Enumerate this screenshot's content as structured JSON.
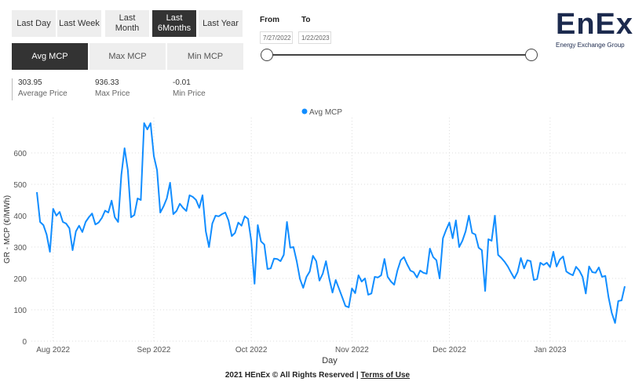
{
  "period_buttons": [
    {
      "label": "Last Day",
      "active": false
    },
    {
      "label": "Last Week",
      "active": false
    },
    {
      "label": "Last\nMonth",
      "active": false
    },
    {
      "label": "Last\n6Months",
      "active": true
    },
    {
      "label": "Last Year",
      "active": false
    }
  ],
  "metric_buttons": [
    {
      "label": "Avg MCP",
      "active": true
    },
    {
      "label": "Max MCP",
      "active": false
    },
    {
      "label": "Min MCP",
      "active": false
    }
  ],
  "stats": [
    {
      "value": "303.95",
      "label": "Average Price"
    },
    {
      "value": "936.33",
      "label": "Max Price"
    },
    {
      "value": "-0.01",
      "label": "Min Price"
    }
  ],
  "date_range": {
    "from_label": "From",
    "to_label": "To",
    "from_value": "7/27/2022",
    "to_value": "1/22/2023"
  },
  "logo": {
    "name": "EnEx",
    "subtitle": "Energy Exchange Group"
  },
  "footer": {
    "text": "2021 HEnEx © All Rights Reserved | ",
    "link": "Terms of Use"
  },
  "chart_data": {
    "type": "line",
    "legend": "Avg MCP",
    "legend_position": "top-center",
    "xlabel": "Day",
    "ylabel": "GR - MCP (€/MWh)",
    "ylim": [
      0,
      700
    ],
    "yticks": [
      0,
      100,
      200,
      300,
      400,
      500,
      600
    ],
    "grid": true,
    "color": "#118dff",
    "xticks": [
      {
        "label": "Aug 2022",
        "date": "2022-08-01"
      },
      {
        "label": "Sep 2022",
        "date": "2022-09-01"
      },
      {
        "label": "Oct 2022",
        "date": "2022-10-01"
      },
      {
        "label": "Nov 2022",
        "date": "2022-11-01"
      },
      {
        "label": "Dec 2022",
        "date": "2022-12-01"
      },
      {
        "label": "Jan 2023",
        "date": "2023-01-01"
      }
    ],
    "series": [
      {
        "name": "Avg MCP",
        "points": [
          [
            "2022-07-27",
            475
          ],
          [
            "2022-07-28",
            380
          ],
          [
            "2022-07-29",
            370
          ],
          [
            "2022-07-30",
            340
          ],
          [
            "2022-07-31",
            285
          ],
          [
            "2022-08-01",
            422
          ],
          [
            "2022-08-02",
            400
          ],
          [
            "2022-08-03",
            412
          ],
          [
            "2022-08-04",
            380
          ],
          [
            "2022-08-05",
            375
          ],
          [
            "2022-08-06",
            360
          ],
          [
            "2022-08-07",
            290
          ],
          [
            "2022-08-08",
            350
          ],
          [
            "2022-08-09",
            368
          ],
          [
            "2022-08-10",
            348
          ],
          [
            "2022-08-11",
            380
          ],
          [
            "2022-08-12",
            395
          ],
          [
            "2022-08-13",
            407
          ],
          [
            "2022-08-14",
            372
          ],
          [
            "2022-08-15",
            378
          ],
          [
            "2022-08-16",
            393
          ],
          [
            "2022-08-17",
            416
          ],
          [
            "2022-08-18",
            410
          ],
          [
            "2022-08-19",
            448
          ],
          [
            "2022-08-20",
            395
          ],
          [
            "2022-08-21",
            380
          ],
          [
            "2022-08-22",
            530
          ],
          [
            "2022-08-23",
            615
          ],
          [
            "2022-08-24",
            545
          ],
          [
            "2022-08-25",
            395
          ],
          [
            "2022-08-26",
            402
          ],
          [
            "2022-08-27",
            455
          ],
          [
            "2022-08-28",
            450
          ],
          [
            "2022-08-29",
            695
          ],
          [
            "2022-08-30",
            675
          ],
          [
            "2022-08-31",
            695
          ],
          [
            "2022-09-01",
            590
          ],
          [
            "2022-09-02",
            545
          ],
          [
            "2022-09-03",
            410
          ],
          [
            "2022-09-04",
            430
          ],
          [
            "2022-09-05",
            455
          ],
          [
            "2022-09-06",
            505
          ],
          [
            "2022-09-07",
            405
          ],
          [
            "2022-09-08",
            415
          ],
          [
            "2022-09-09",
            438
          ],
          [
            "2022-09-10",
            425
          ],
          [
            "2022-09-11",
            415
          ],
          [
            "2022-09-12",
            465
          ],
          [
            "2022-09-13",
            460
          ],
          [
            "2022-09-14",
            450
          ],
          [
            "2022-09-15",
            425
          ],
          [
            "2022-09-16",
            465
          ],
          [
            "2022-09-17",
            350
          ],
          [
            "2022-09-18",
            300
          ],
          [
            "2022-09-19",
            375
          ],
          [
            "2022-09-20",
            400
          ],
          [
            "2022-09-21",
            398
          ],
          [
            "2022-09-22",
            405
          ],
          [
            "2022-09-23",
            410
          ],
          [
            "2022-09-24",
            385
          ],
          [
            "2022-09-25",
            335
          ],
          [
            "2022-09-26",
            345
          ],
          [
            "2022-09-27",
            378
          ],
          [
            "2022-09-28",
            368
          ],
          [
            "2022-09-29",
            398
          ],
          [
            "2022-09-30",
            390
          ],
          [
            "2022-10-01",
            320
          ],
          [
            "2022-10-02",
            183
          ],
          [
            "2022-10-03",
            370
          ],
          [
            "2022-10-04",
            318
          ],
          [
            "2022-10-05",
            308
          ],
          [
            "2022-10-06",
            230
          ],
          [
            "2022-10-07",
            232
          ],
          [
            "2022-10-08",
            263
          ],
          [
            "2022-10-09",
            262
          ],
          [
            "2022-10-10",
            255
          ],
          [
            "2022-10-11",
            275
          ],
          [
            "2022-10-12",
            380
          ],
          [
            "2022-10-13",
            298
          ],
          [
            "2022-10-14",
            300
          ],
          [
            "2022-10-15",
            255
          ],
          [
            "2022-10-16",
            198
          ],
          [
            "2022-10-17",
            170
          ],
          [
            "2022-10-18",
            205
          ],
          [
            "2022-10-19",
            222
          ],
          [
            "2022-10-20",
            272
          ],
          [
            "2022-10-21",
            255
          ],
          [
            "2022-10-22",
            193
          ],
          [
            "2022-10-23",
            215
          ],
          [
            "2022-10-24",
            255
          ],
          [
            "2022-10-25",
            200
          ],
          [
            "2022-10-26",
            155
          ],
          [
            "2022-10-27",
            195
          ],
          [
            "2022-10-28",
            168
          ],
          [
            "2022-10-29",
            140
          ],
          [
            "2022-10-30",
            112
          ],
          [
            "2022-10-31",
            108
          ],
          [
            "2022-11-01",
            168
          ],
          [
            "2022-11-02",
            153
          ],
          [
            "2022-11-03",
            210
          ],
          [
            "2022-11-04",
            190
          ],
          [
            "2022-11-05",
            200
          ],
          [
            "2022-11-06",
            148
          ],
          [
            "2022-11-07",
            152
          ],
          [
            "2022-11-08",
            205
          ],
          [
            "2022-11-09",
            203
          ],
          [
            "2022-11-10",
            210
          ],
          [
            "2022-11-11",
            262
          ],
          [
            "2022-11-12",
            205
          ],
          [
            "2022-11-13",
            190
          ],
          [
            "2022-11-14",
            180
          ],
          [
            "2022-11-15",
            225
          ],
          [
            "2022-11-16",
            258
          ],
          [
            "2022-11-17",
            268
          ],
          [
            "2022-11-18",
            245
          ],
          [
            "2022-11-19",
            225
          ],
          [
            "2022-11-20",
            220
          ],
          [
            "2022-11-21",
            203
          ],
          [
            "2022-11-22",
            225
          ],
          [
            "2022-11-23",
            218
          ],
          [
            "2022-11-24",
            215
          ],
          [
            "2022-11-25",
            295
          ],
          [
            "2022-11-26",
            268
          ],
          [
            "2022-11-27",
            258
          ],
          [
            "2022-11-28",
            200
          ],
          [
            "2022-11-29",
            328
          ],
          [
            "2022-11-30",
            355
          ],
          [
            "2022-12-01",
            378
          ],
          [
            "2022-12-02",
            328
          ],
          [
            "2022-12-03",
            385
          ],
          [
            "2022-12-04",
            300
          ],
          [
            "2022-12-05",
            320
          ],
          [
            "2022-12-06",
            350
          ],
          [
            "2022-12-07",
            400
          ],
          [
            "2022-12-08",
            345
          ],
          [
            "2022-12-09",
            340
          ],
          [
            "2022-12-10",
            298
          ],
          [
            "2022-12-11",
            290
          ],
          [
            "2022-12-12",
            160
          ],
          [
            "2022-12-13",
            325
          ],
          [
            "2022-12-14",
            320
          ],
          [
            "2022-12-15",
            400
          ],
          [
            "2022-12-16",
            275
          ],
          [
            "2022-12-17",
            265
          ],
          [
            "2022-12-18",
            253
          ],
          [
            "2022-12-19",
            238
          ],
          [
            "2022-12-20",
            218
          ],
          [
            "2022-12-21",
            200
          ],
          [
            "2022-12-22",
            220
          ],
          [
            "2022-12-23",
            265
          ],
          [
            "2022-12-24",
            232
          ],
          [
            "2022-12-25",
            258
          ],
          [
            "2022-12-26",
            255
          ],
          [
            "2022-12-27",
            195
          ],
          [
            "2022-12-28",
            198
          ],
          [
            "2022-12-29",
            250
          ],
          [
            "2022-12-30",
            243
          ],
          [
            "2022-12-31",
            250
          ],
          [
            "2023-01-01",
            236
          ],
          [
            "2023-01-02",
            285
          ],
          [
            "2023-01-03",
            238
          ],
          [
            "2023-01-04",
            260
          ],
          [
            "2023-01-05",
            270
          ],
          [
            "2023-01-06",
            222
          ],
          [
            "2023-01-07",
            215
          ],
          [
            "2023-01-08",
            210
          ],
          [
            "2023-01-09",
            237
          ],
          [
            "2023-01-10",
            225
          ],
          [
            "2023-01-11",
            205
          ],
          [
            "2023-01-12",
            152
          ],
          [
            "2023-01-13",
            238
          ],
          [
            "2023-01-14",
            220
          ],
          [
            "2023-01-15",
            218
          ],
          [
            "2023-01-16",
            235
          ],
          [
            "2023-01-17",
            205
          ],
          [
            "2023-01-18",
            208
          ],
          [
            "2023-01-19",
            140
          ],
          [
            "2023-01-20",
            90
          ],
          [
            "2023-01-21",
            58
          ],
          [
            "2023-01-22",
            128
          ],
          [
            "2023-01-23",
            130
          ],
          [
            "2023-01-24",
            175
          ]
        ]
      }
    ]
  }
}
